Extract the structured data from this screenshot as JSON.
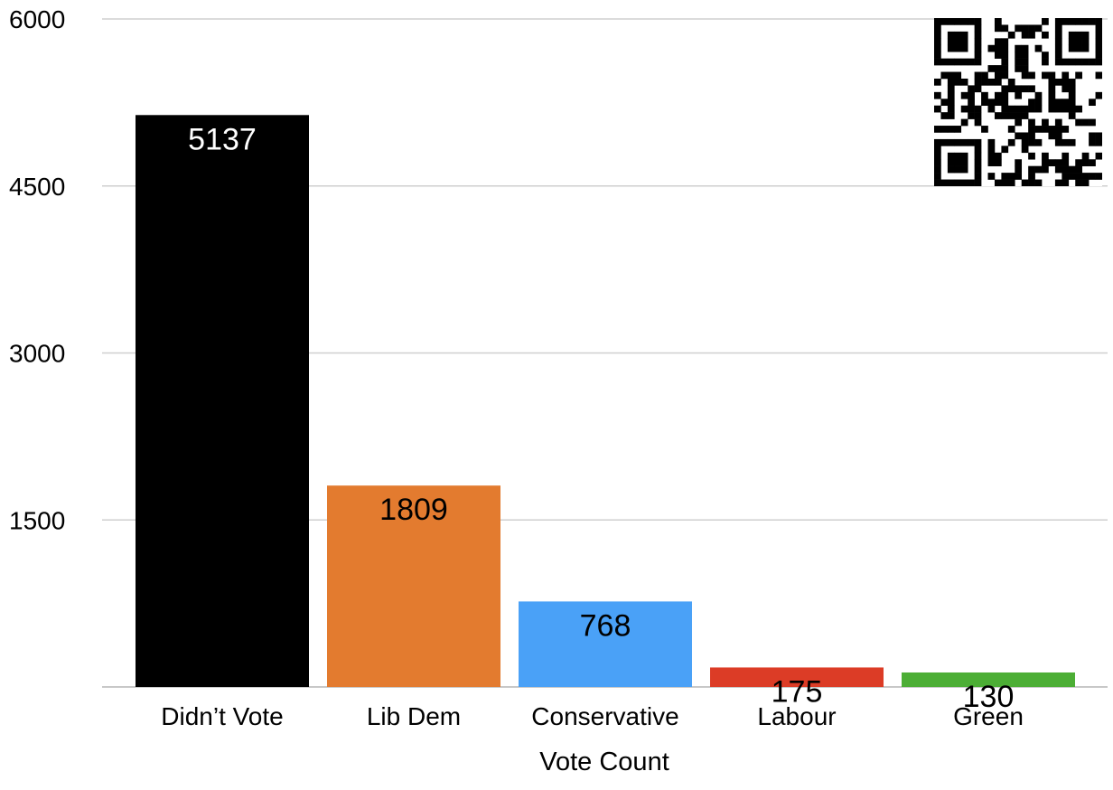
{
  "chart_data": {
    "type": "bar",
    "title": "",
    "xlabel": "Vote Count",
    "ylabel": "",
    "ylim": [
      0,
      6000
    ],
    "yticks": [
      1500,
      3000,
      4500,
      6000
    ],
    "grid": true,
    "categories": [
      "Didn’t Vote",
      "Lib Dem",
      "Conservative",
      "Labour",
      "Green"
    ],
    "values": [
      5137,
      1809,
      768,
      175,
      130
    ],
    "data_labels": [
      "5137",
      "1809",
      "768",
      "175",
      "130"
    ],
    "colors": [
      "#000000",
      "#E37B2F",
      "#4AA1F7",
      "#DC3C26",
      "#4CAE35"
    ],
    "label_colors": [
      "#FFFFFF",
      "#000000",
      "#000000",
      "#000000",
      "#000000"
    ]
  },
  "qr_code": {
    "icon": "qr-code-icon"
  }
}
